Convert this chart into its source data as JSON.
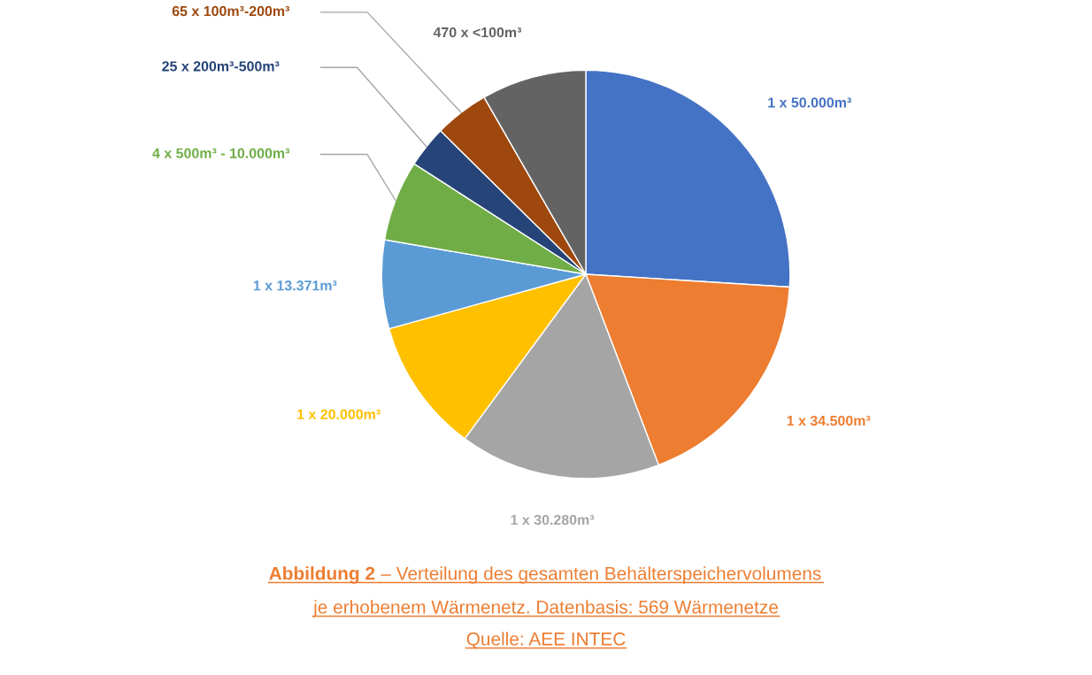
{
  "chart_data": {
    "type": "pie",
    "categories": [
      "1 x 50.000m³",
      "1 x 34.500m³",
      "1 x 30.280m³",
      "1 x 20.000m³",
      "1 x 13.371m³",
      "4 x 500m³ - 10.000m³",
      "25 x 200m³-500m³",
      "65 x 100m³-200m³",
      "470 x <100m³"
    ],
    "values": [
      26.0,
      18.2,
      15.9,
      10.6,
      7.0,
      6.4,
      3.3,
      4.3,
      8.3
    ],
    "colors": [
      "#4472c4",
      "#ed7d31",
      "#a5a5a5",
      "#ffc000",
      "#5b9bd5",
      "#70ad47",
      "#264478",
      "#9e480e",
      "#636363"
    ],
    "annotations": [
      "Abbildung 2",
      "– Verteilung des gesamten Behälterspeichervolumens",
      "je erhobenem Wärmenetz. Datenbasis: 569 Wärmenetze",
      "Quelle: AEE INTEC"
    ]
  }
}
